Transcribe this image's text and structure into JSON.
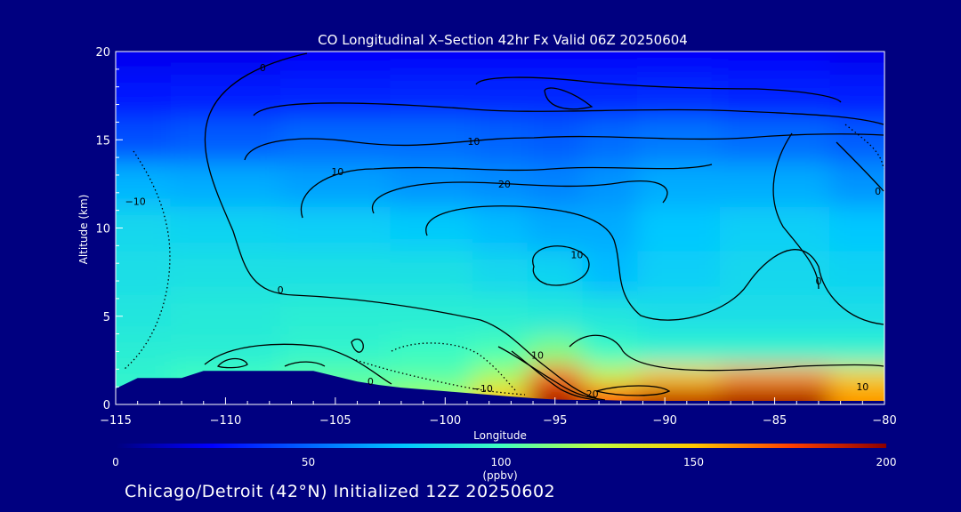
{
  "footer": "Chicago/Detroit (42°N) Initialized 12Z 20250602",
  "chart_data": {
    "type": "heatmap",
    "title": "CO Longitudinal X–Section 42hr  Fx Valid 06Z 20250604",
    "xlabel": "Longitude",
    "ylabel": "Altitude (km)",
    "xlim": [
      -115,
      -80
    ],
    "ylim": [
      0,
      20
    ],
    "x_ticks": [
      -115,
      -110,
      -105,
      -100,
      -95,
      -90,
      -85,
      -80
    ],
    "x_tick_labels": [
      "−115",
      "−110",
      "−105",
      "−100",
      "−95",
      "−90",
      "−85",
      "−80"
    ],
    "y_ticks": [
      0,
      5,
      10,
      15,
      20
    ],
    "y_tick_labels": [
      "0",
      "5",
      "10",
      "15",
      "20"
    ],
    "colorbar": {
      "label": "(ppbv)",
      "min": 0,
      "max": 200,
      "ticks": [
        0,
        50,
        100,
        150,
        200
      ],
      "colors": [
        "#00007f",
        "#0000ff",
        "#0064ff",
        "#00c8ff",
        "#40ffc0",
        "#c0ff40",
        "#ffc800",
        "#ff4000",
        "#8b0000"
      ]
    },
    "field": {
      "x": [
        -115,
        -110,
        -105,
        -100,
        -97.5,
        -95,
        -92.5,
        -90,
        -85,
        -80
      ],
      "y": [
        0.5,
        1.5,
        3,
        5,
        7.5,
        10,
        12.5,
        15,
        17.5,
        20
      ],
      "values": [
        [
          95,
          100,
          110,
          120,
          150,
          195,
          175,
          190,
          195,
          160
        ],
        [
          95,
          100,
          105,
          105,
          120,
          170,
          130,
          150,
          160,
          145
        ],
        [
          92,
          92,
          95,
          98,
          102,
          112,
          98,
          95,
          95,
          95
        ],
        [
          88,
          90,
          92,
          92,
          92,
          90,
          88,
          85,
          85,
          85
        ],
        [
          85,
          86,
          86,
          86,
          82,
          80,
          72,
          78,
          82,
          80
        ],
        [
          82,
          80,
          78,
          76,
          72,
          68,
          68,
          75,
          78,
          75
        ],
        [
          70,
          68,
          65,
          62,
          60,
          58,
          62,
          68,
          68,
          62
        ],
        [
          45,
          48,
          52,
          52,
          50,
          48,
          52,
          55,
          52,
          48
        ],
        [
          30,
          32,
          34,
          35,
          35,
          35,
          35,
          36,
          34,
          32
        ],
        [
          22,
          22,
          24,
          24,
          24,
          24,
          24,
          24,
          24,
          22
        ]
      ]
    },
    "terrain": {
      "lon": [
        -115,
        -114,
        -113,
        -112,
        -111,
        -110,
        -109,
        -108,
        -107,
        -106,
        -105,
        -104,
        -103,
        -102,
        -101,
        -100,
        -99,
        -98,
        -97,
        -96,
        -95,
        -94,
        -93,
        -92,
        -90,
        -88,
        -85,
        -82,
        -80
      ],
      "alt_km": [
        0.9,
        1.5,
        1.5,
        1.5,
        1.9,
        1.9,
        1.9,
        1.9,
        1.9,
        1.9,
        1.6,
        1.3,
        1.1,
        0.95,
        0.85,
        0.75,
        0.65,
        0.55,
        0.45,
        0.35,
        0.28,
        0.25,
        0.25,
        0.22,
        0.2,
        0.2,
        0.2,
        0.2,
        0.2
      ]
    },
    "contour_labels": [
      {
        "text": "0",
        "lon": -108.3,
        "alt": 19.1
      },
      {
        "text": "10",
        "lon": -98.7,
        "alt": 14.9
      },
      {
        "text": "10",
        "lon": -104.9,
        "alt": 13.2
      },
      {
        "text": "20",
        "lon": -97.3,
        "alt": 12.5
      },
      {
        "text": "−10",
        "lon": -114.1,
        "alt": 11.5
      },
      {
        "text": "0",
        "lon": -80.3,
        "alt": 12.1
      },
      {
        "text": "10",
        "lon": -94.0,
        "alt": 8.5
      },
      {
        "text": "0",
        "lon": -107.5,
        "alt": 6.5
      },
      {
        "text": "0",
        "lon": -83.0,
        "alt": 7.0
      },
      {
        "text": "10",
        "lon": -95.8,
        "alt": 2.8
      },
      {
        "text": "0",
        "lon": -103.4,
        "alt": 1.3
      },
      {
        "text": "−10",
        "lon": -98.3,
        "alt": 0.9
      },
      {
        "text": "20",
        "lon": -93.3,
        "alt": 0.6
      },
      {
        "text": "10",
        "lon": -81.0,
        "alt": 1.0
      }
    ]
  }
}
